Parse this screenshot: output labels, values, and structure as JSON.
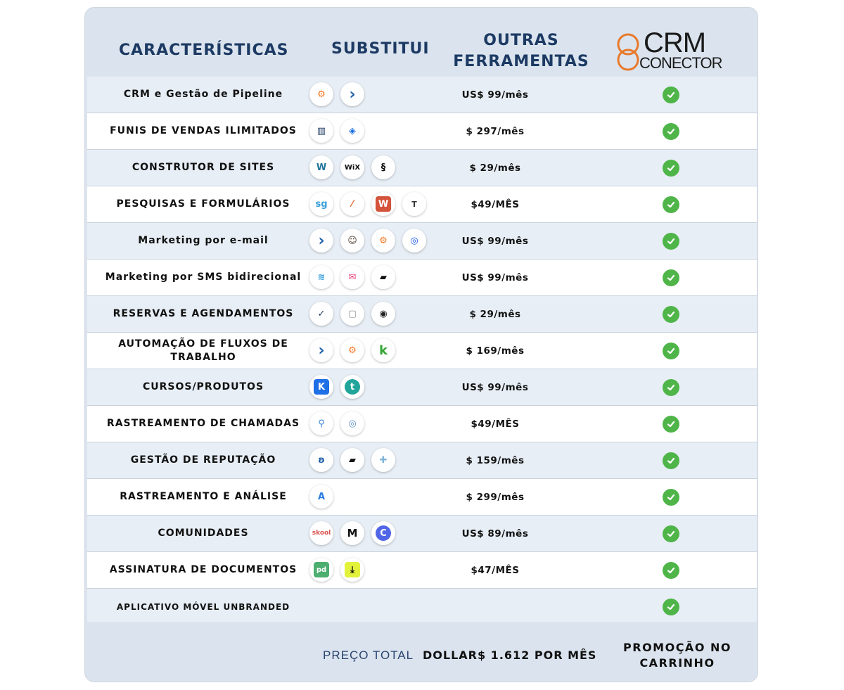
{
  "header": {
    "features": "CARACTERÍSTICAS",
    "replaces": "SUBSTITUI",
    "other_tools_line1": "OUTRAS",
    "other_tools_line2": "FERRAMENTAS",
    "logo_line1": "CRM",
    "logo_line2": "CONECTOR"
  },
  "rows": [
    {
      "feature": "CRM e Gestão de Pipeline",
      "price": "US$ 99/mês",
      "icons": [
        "hubspot-icon",
        "activecampaign-icon"
      ]
    },
    {
      "feature": "FUNIS DE VENDAS ILIMITADOS",
      "price": "$ 297/mês",
      "icons": [
        "clickfunnels-icon",
        "layers-icon"
      ]
    },
    {
      "feature": "CONSTRUTOR DE SITES",
      "price": "$ 29/mês",
      "icons": [
        "wordpress-icon",
        "wix-icon",
        "squarespace-icon"
      ]
    },
    {
      "feature": "PESQUISAS E FORMULÁRIOS",
      "price": "$49/MÊS",
      "icons": [
        "surveygizmo-icon",
        "formstack-icon",
        "wufoo-icon",
        "typeform-icon"
      ]
    },
    {
      "feature": "Marketing por e-mail",
      "price": "US$ 99/mês",
      "icons": [
        "activecampaign-icon",
        "mailchimp-icon",
        "hubspot-icon",
        "constant-contact-icon"
      ]
    },
    {
      "feature": "Marketing por SMS bidirecional",
      "price": "US$ 99/mês",
      "icons": [
        "stack-icon",
        "sms-envelope-icon",
        "podium-icon"
      ]
    },
    {
      "feature": "RESERVAS E AGENDAMENTOS",
      "price": "$ 29/mês",
      "icons": [
        "calendly-icon",
        "calendar-icon",
        "acuity-icon"
      ]
    },
    {
      "feature": "AUTOMAÇÃO DE FLUXOS DE TRABALHO",
      "price": "$ 169/mês",
      "icons": [
        "activecampaign-icon",
        "hubspot-icon",
        "keap-icon"
      ]
    },
    {
      "feature": "CURSOS/PRODUTOS",
      "price": "US$ 99/mês",
      "icons": [
        "kajabi-icon",
        "teachable-icon"
      ]
    },
    {
      "feature": "RASTREAMENTO DE CHAMADAS",
      "price": "$49/MÊS",
      "icons": [
        "callrail-pin-icon",
        "call-tracking-icon"
      ]
    },
    {
      "feature": "GESTÃO DE REPUTAÇÃO",
      "price": "$ 159/mês",
      "icons": [
        "birdeye-icon",
        "podium-icon",
        "puzzle-icon"
      ]
    },
    {
      "feature": "RASTREAMENTO E ANÁLISE",
      "price": "$ 299/mês",
      "icons": [
        "analytics-icon"
      ]
    },
    {
      "feature": "COMUNIDADES",
      "price": "US$ 89/mês",
      "icons": [
        "skool-icon",
        "mighty-networks-icon",
        "circle-icon"
      ]
    },
    {
      "feature": "ASSINATURA DE DOCUMENTOS",
      "price": "$47/MÊS",
      "icons": [
        "pandadoc-icon",
        "download-icon"
      ]
    },
    {
      "feature": "APLICATIVO MÓVEL UNBRANDED",
      "price": "",
      "icons": []
    }
  ],
  "footer": {
    "total_label": "PREÇO TOTAL",
    "total_value": "DOLLAR$ 1.612 POR MÊS",
    "promo_line1": "PROMOÇÃO NO",
    "promo_line2": "CARRINHO"
  },
  "colors": {
    "header_bg": "#dbe4ee",
    "header_text": "#1c3a63",
    "row_alt": "#e7eef5",
    "check_green": "#4fb549",
    "logo_orange": "#e8792b"
  }
}
